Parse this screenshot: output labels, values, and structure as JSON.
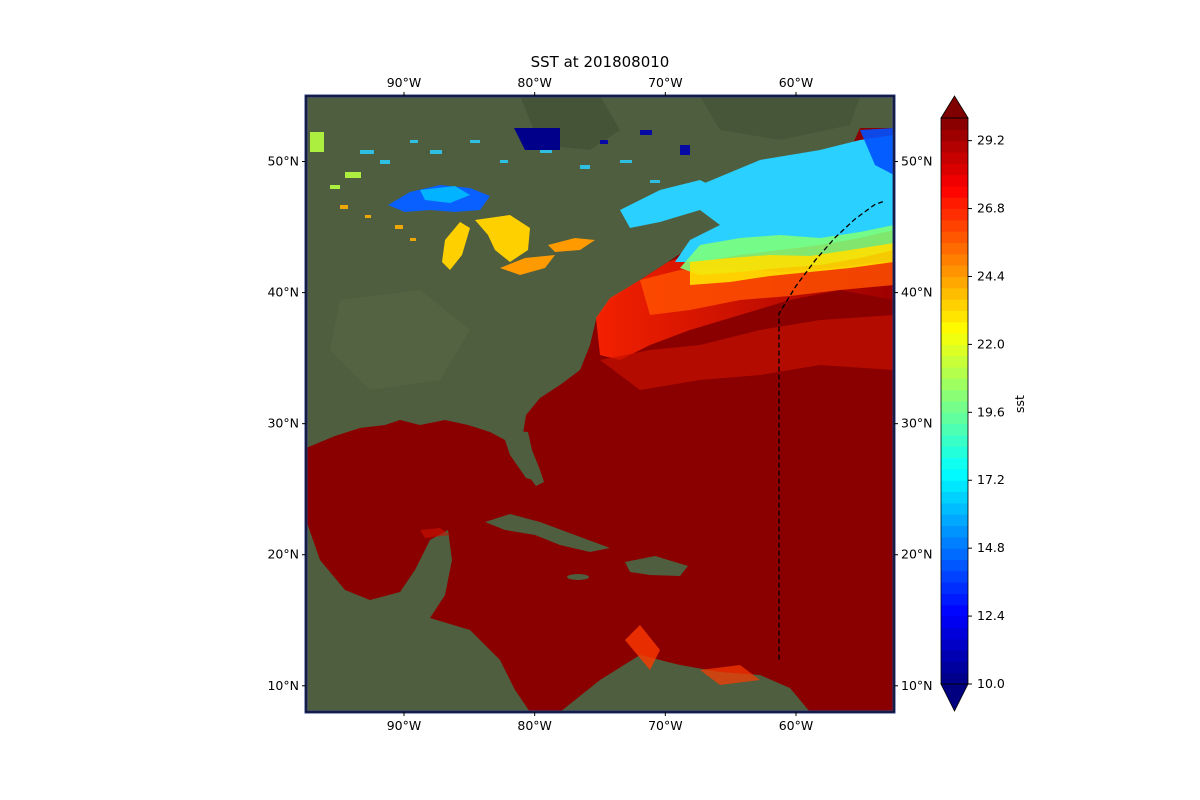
{
  "title": "SST at 201808010",
  "map": {
    "lon_range": [
      -97.5,
      -52.5
    ],
    "lat_range": [
      8,
      55
    ],
    "lon_ticks": [
      {
        "lon": -90,
        "label": "90°W"
      },
      {
        "lon": -80,
        "label": "80°W"
      },
      {
        "lon": -70,
        "label": "70°W"
      },
      {
        "lon": -60,
        "label": "60°W"
      }
    ],
    "lat_ticks": [
      {
        "lat": 50,
        "label": "50°N"
      },
      {
        "lat": 40,
        "label": "40°N"
      },
      {
        "lat": 30,
        "label": "30°N"
      },
      {
        "lat": 20,
        "label": "20°N"
      },
      {
        "lat": 10,
        "label": "10°N"
      }
    ],
    "track": [
      [
        -61.3,
        12
      ],
      [
        -61.3,
        20
      ],
      [
        -61.3,
        30
      ],
      [
        -61.3,
        38.4
      ],
      [
        -60,
        40.5
      ],
      [
        -58.5,
        42.5
      ],
      [
        -57,
        44.2
      ],
      [
        -55.5,
        45.6
      ],
      [
        -54,
        46.7
      ],
      [
        -53.2,
        47
      ]
    ],
    "colors": {
      "land": "#4f5e3e",
      "land_dark": "#3f4e33",
      "warm_water": "#8a0000",
      "frame": "#2b3a8a"
    }
  },
  "colorbar": {
    "label": "sst",
    "min": 10.0,
    "max": 30.0,
    "ticks": [
      "10.0",
      "12.4",
      "14.8",
      "17.2",
      "19.6",
      "22.0",
      "24.4",
      "26.8",
      "29.2"
    ],
    "colormap": "jet"
  }
}
